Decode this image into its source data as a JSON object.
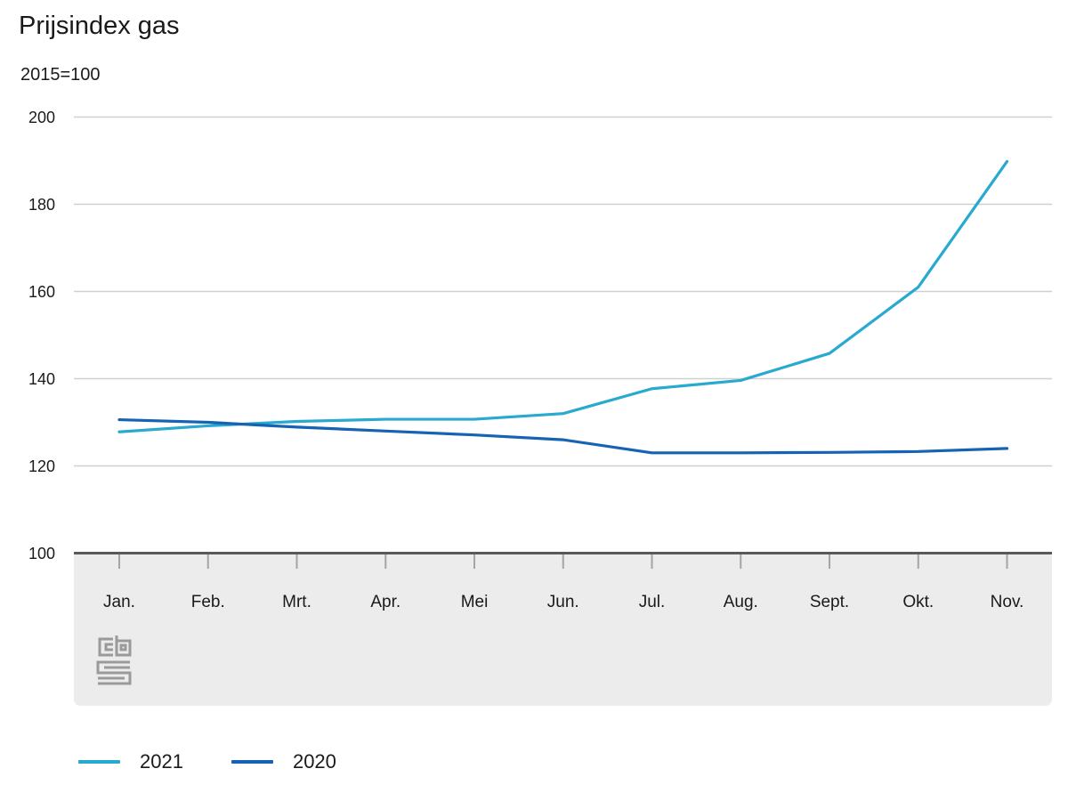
{
  "header": {
    "title": "Prijsindex gas",
    "subtitle": "2015=100"
  },
  "chart_data": {
    "type": "line",
    "title": "Prijsindex gas",
    "unit_label": "2015=100",
    "categories": [
      "Jan.",
      "Feb.",
      "Mrt.",
      "Apr.",
      "Mei",
      "Jun.",
      "Jul.",
      "Aug.",
      "Sept.",
      "Okt.",
      "Nov."
    ],
    "series": [
      {
        "name": "2021",
        "color": "#28A9CF",
        "values": [
          127.8,
          129.2,
          130.2,
          130.7,
          130.7,
          132.0,
          137.7,
          139.6,
          145.8,
          161.0,
          189.8
        ]
      },
      {
        "name": "2020",
        "color": "#1563B2",
        "values": [
          130.6,
          130.0,
          128.9,
          128.0,
          127.1,
          126.0,
          123.0,
          123.0,
          123.1,
          123.3,
          124.0
        ]
      }
    ],
    "xlabel": "",
    "ylabel": "2015=100",
    "ylim": [
      100,
      200
    ],
    "yticks": [
      100,
      120,
      140,
      160,
      180,
      200
    ],
    "grid": "horizontal",
    "legend_position": "bottom",
    "colors": {
      "gridline": "#D0D0D0",
      "axis_line": "#595959",
      "tick": "#A5A5A5",
      "axis_band": "#ECECEC",
      "text": "#1a1a1a",
      "logo": "#9A9A9A"
    },
    "source_logo": "cbs-logo"
  }
}
